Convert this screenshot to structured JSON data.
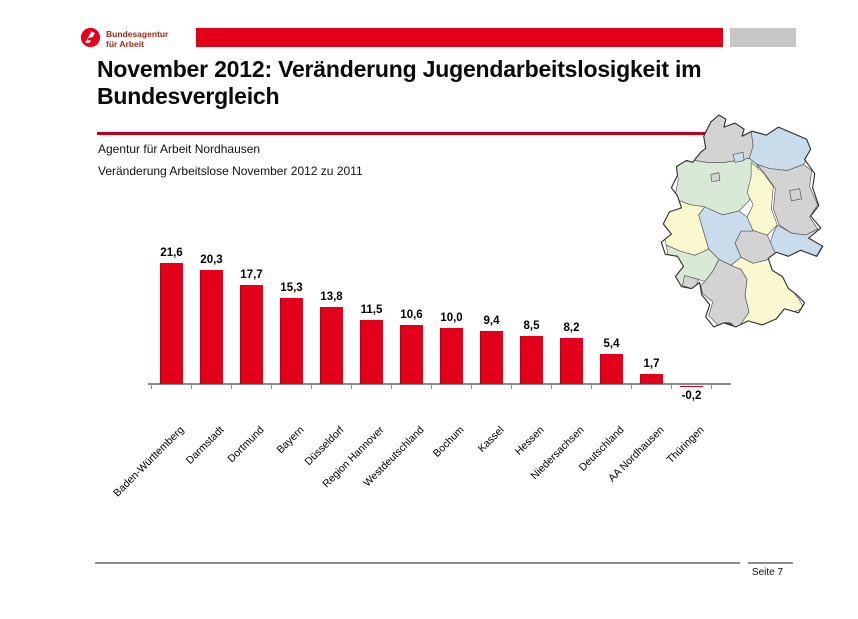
{
  "logo": {
    "line1": "Bundesagentur",
    "line2": "für Arbeit"
  },
  "header": {
    "title": "November 2012: Veränderung Jugendarbeitslosigkeit im Bundesvergleich"
  },
  "subheader": {
    "line1": "Agentur für Arbeit Nordhausen",
    "line2": "Veränderung Arbeitslose November 2012 zu 2011"
  },
  "footer": {
    "page_label": "Seite 7"
  },
  "colors": {
    "brand_red": "#e2001a",
    "title_rule_red": "#c00018",
    "top_bar_gray": "#c6c6c6",
    "axis_gray": "#8c8c8c",
    "logo_text_red": "#a6281c"
  },
  "chart_data": {
    "type": "bar",
    "title": "Veränderung Arbeitslose November 2012 zu 2011",
    "categories": [
      "Baden-Württemberg",
      "Darmstadt",
      "Dortmund",
      "Bayern",
      "Düsseldorf",
      "Region Hannover",
      "Westdeutschland",
      "Bochum",
      "Kassel",
      "Hessen",
      "Niedersachsen",
      "Deutschland",
      "AA Nordhausen",
      "Thüringen"
    ],
    "values": [
      21.6,
      20.3,
      17.7,
      15.3,
      13.8,
      11.5,
      10.6,
      10.0,
      9.4,
      8.5,
      8.2,
      5.4,
      1.7,
      -0.2
    ],
    "value_labels": [
      "21,6",
      "20,3",
      "17,7",
      "15,3",
      "13,8",
      "11,5",
      "10,6",
      "10,0",
      "9,4",
      "8,5",
      "8,2",
      "5,4",
      "1,7",
      "-0,2"
    ],
    "xlabel": "",
    "ylabel": "",
    "ylim": [
      -1,
      23
    ],
    "grid": false,
    "legend": "none",
    "bar_color": "#e2001a",
    "axis_color": "#8c8c8c",
    "number_format": "german-decimal-comma",
    "category_label_rotation_deg": -45
  },
  "map": {
    "label": "germany-federal-states-map",
    "outline_color": "#2e2e2e",
    "border_color": "#4a4a4a",
    "state_colors": {
      "schleswig_holstein": "#d3d3d3",
      "mecklenburg_vorpommern": "#c8dcec",
      "hamburg": "#c8dcec",
      "bremen": "#d3d3d3",
      "niedersachsen": "#d8e9d5",
      "brandenburg": "#d3d3d3",
      "berlin": "#d3d3d3",
      "sachsen_anhalt": "#fbf9d0",
      "sachsen": "#c8dcec",
      "thueringen": "#d3d3d3",
      "hessen": "#c8dcec",
      "nordrhein_westfalen": "#fbf9d0",
      "rheinland_pfalz": "#d8e9d5",
      "saarland": "#d3d3d3",
      "baden_wuerttemberg": "#d3d3d3",
      "bayern": "#fbf9d0",
      "lake_constance": "#2e4d6b"
    }
  }
}
